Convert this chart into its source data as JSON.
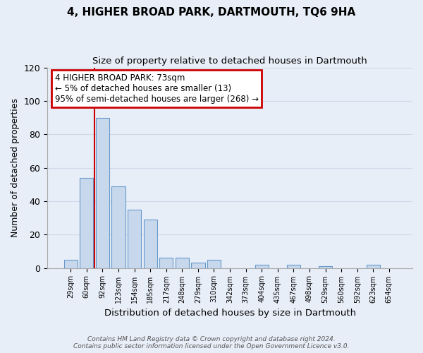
{
  "title": "4, HIGHER BROAD PARK, DARTMOUTH, TQ6 9HA",
  "subtitle": "Size of property relative to detached houses in Dartmouth",
  "xlabel": "Distribution of detached houses by size in Dartmouth",
  "ylabel": "Number of detached properties",
  "categories": [
    "29sqm",
    "60sqm",
    "92sqm",
    "123sqm",
    "154sqm",
    "185sqm",
    "217sqm",
    "248sqm",
    "279sqm",
    "310sqm",
    "342sqm",
    "373sqm",
    "404sqm",
    "435sqm",
    "467sqm",
    "498sqm",
    "529sqm",
    "560sqm",
    "592sqm",
    "623sqm",
    "654sqm"
  ],
  "values": [
    5,
    54,
    90,
    49,
    35,
    29,
    6,
    6,
    3,
    5,
    0,
    0,
    2,
    0,
    2,
    0,
    1,
    0,
    0,
    2,
    0
  ],
  "bar_color": "#c8d8ec",
  "bar_edge_color": "#6699cc",
  "ylim": [
    0,
    120
  ],
  "yticks": [
    0,
    20,
    40,
    60,
    80,
    100,
    120
  ],
  "grid_color": "#d0d8e8",
  "annotation_line1": "4 HIGHER BROAD PARK: 73sqm",
  "annotation_line2": "← 5% of detached houses are smaller (13)",
  "annotation_line3": "95% of semi-detached houses are larger (268) →",
  "annotation_box_color": "#ffffff",
  "annotation_box_edge_color": "#cc0000",
  "vline_color": "#cc0000",
  "footnote": "Contains HM Land Registry data © Crown copyright and database right 2024.\nContains public sector information licensed under the Open Government Licence v3.0.",
  "bg_color": "#e8eef8"
}
